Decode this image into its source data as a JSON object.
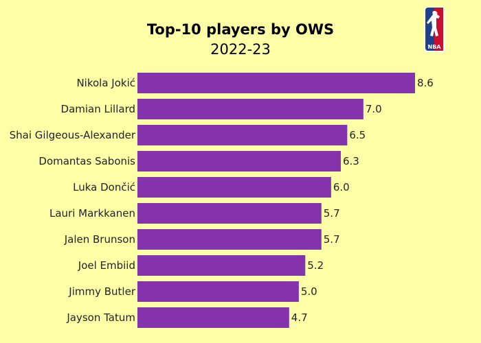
{
  "chart_data": {
    "type": "bar",
    "orientation": "horizontal",
    "title": "Top-10 players by OWS",
    "subtitle": "2022-23",
    "categories": [
      "Nikola Jokić",
      "Damian Lillard",
      "Shai Gilgeous-Alexander",
      "Domantas Sabonis",
      "Luka Dončić",
      "Lauri Markkanen",
      "Jalen Brunson",
      "Joel Embiid",
      "Jimmy Butler",
      "Jayson Tatum"
    ],
    "values": [
      8.6,
      7.0,
      6.5,
      6.3,
      6.0,
      5.7,
      5.7,
      5.2,
      5.0,
      4.7
    ],
    "data_labels": [
      "8.6",
      "7.0",
      "6.5",
      "6.3",
      "6.0",
      "5.7",
      "5.7",
      "5.2",
      "5.0",
      "4.7"
    ],
    "xlabel": "",
    "ylabel": "",
    "xlim": [
      0,
      8.6
    ],
    "grid": false,
    "bar_color": "#8533ad",
    "background_color": "#ffffa8"
  },
  "logo": {
    "text": "NBA",
    "icon": "nba-logo-icon",
    "colors": {
      "blue": "#1d428a",
      "red": "#c8102e",
      "white": "#ffffff"
    }
  }
}
